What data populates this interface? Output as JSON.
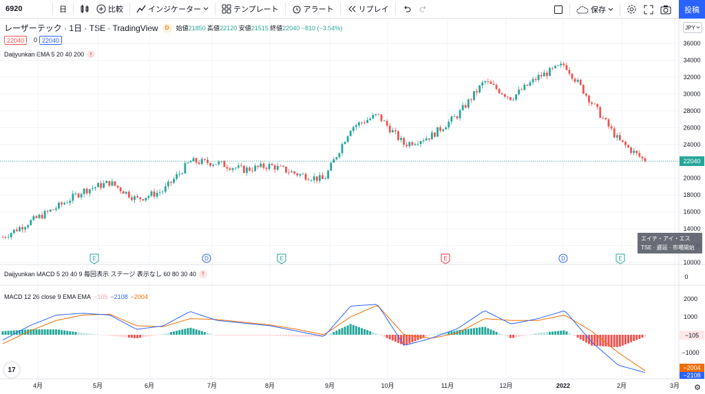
{
  "toolbar": {
    "symbol": "6920",
    "compare": "比較",
    "indicators": "インジケーター",
    "templates": "テンプレート",
    "alert": "アラート",
    "replay": "リプレイ",
    "save": "保存",
    "post": "投稿"
  },
  "legend": {
    "title": "レーザーテック · 1日 · TSE · TradingView",
    "badge": "D",
    "open_label": "始値",
    "open": "21850",
    "high_label": "高値",
    "high": "22120",
    "low_label": "安値",
    "low": "21515",
    "close_label": "終値",
    "close": "22040",
    "change": "−810 (−3.54%)",
    "bid": "22040",
    "spread": "0",
    "ask": "22040"
  },
  "indicators": {
    "ema": "Daijyunkan EMA 5 20 40 200",
    "macd_stage": "Daijyunkan MACD 5 20 40 9 毎回表示 ステージ 表示なし 60 80 30 40",
    "macd": "MACD 12 26 close 9 EMA EMA",
    "macd_hist": "−105",
    "macd_line": "−2108",
    "macd_signal": "−2004"
  },
  "currency": "JPY",
  "price_axis": [
    "36000",
    "34000",
    "32000",
    "30000",
    "28000",
    "26000",
    "24000",
    "22000",
    "20000",
    "18000",
    "16000",
    "14000",
    "12000",
    "10000"
  ],
  "last_price_label": "22040",
  "stage_axis": "0",
  "macd_axis": [
    "2000",
    "1000",
    "0",
    "−1000",
    "−2000"
  ],
  "macd_labels": {
    "hist": "−105",
    "signal": "−2004",
    "macd": "−2108"
  },
  "time_axis": [
    "4月",
    "5月",
    "6月",
    "7月",
    "8月",
    "9月",
    "10月",
    "11月",
    "12月",
    "2022",
    "2月",
    "3月"
  ],
  "events": [
    "E",
    "D",
    "E",
    "E",
    "D",
    "E"
  ],
  "tooltip": {
    "line1": "エイチ・アイ・エス",
    "line2": "TSE · 遅延 · 市場開始"
  },
  "colors": {
    "up": "#26a69a",
    "down": "#ef5350",
    "macd": "#2962ff",
    "signal": "#ef6c00",
    "accent": "#2962ff"
  },
  "chart_data": {
    "type": "candlestick",
    "ylim": [
      10000,
      37000
    ],
    "x": [
      "2021-03-10",
      "2021-03-24",
      "2021-04-07",
      "2021-04-21",
      "2021-05-06",
      "2021-05-20",
      "2021-06-03",
      "2021-06-17",
      "2021-07-01",
      "2021-07-15",
      "2021-07-29",
      "2021-08-12",
      "2021-08-26",
      "2021-09-09",
      "2021-09-24",
      "2021-10-08",
      "2021-10-22",
      "2021-11-05",
      "2021-11-19",
      "2021-12-03",
      "2021-12-17",
      "2021-12-30",
      "2022-01-14",
      "2022-01-28",
      "2022-02-10"
    ],
    "close": [
      13000,
      14800,
      16500,
      18500,
      19500,
      17500,
      18500,
      22000,
      21800,
      21000,
      21500,
      20500,
      19800,
      26000,
      27500,
      24000,
      25000,
      27500,
      31500,
      29500,
      32000,
      33500,
      29000,
      24500,
      22040
    ],
    "macd": [
      -300,
      500,
      1100,
      1200,
      1100,
      300,
      500,
      1300,
      800,
      650,
      500,
      200,
      -100,
      1600,
      1700,
      -600,
      -200,
      350,
      1350,
      600,
      900,
      1350,
      -400,
      -1700,
      -2108
    ],
    "signal": [
      -500,
      200,
      800,
      1100,
      1150,
      500,
      450,
      900,
      850,
      700,
      550,
      300,
      0,
      1000,
      1650,
      0,
      -200,
      100,
      900,
      800,
      800,
      1100,
      200,
      -1000,
      -2004
    ]
  }
}
